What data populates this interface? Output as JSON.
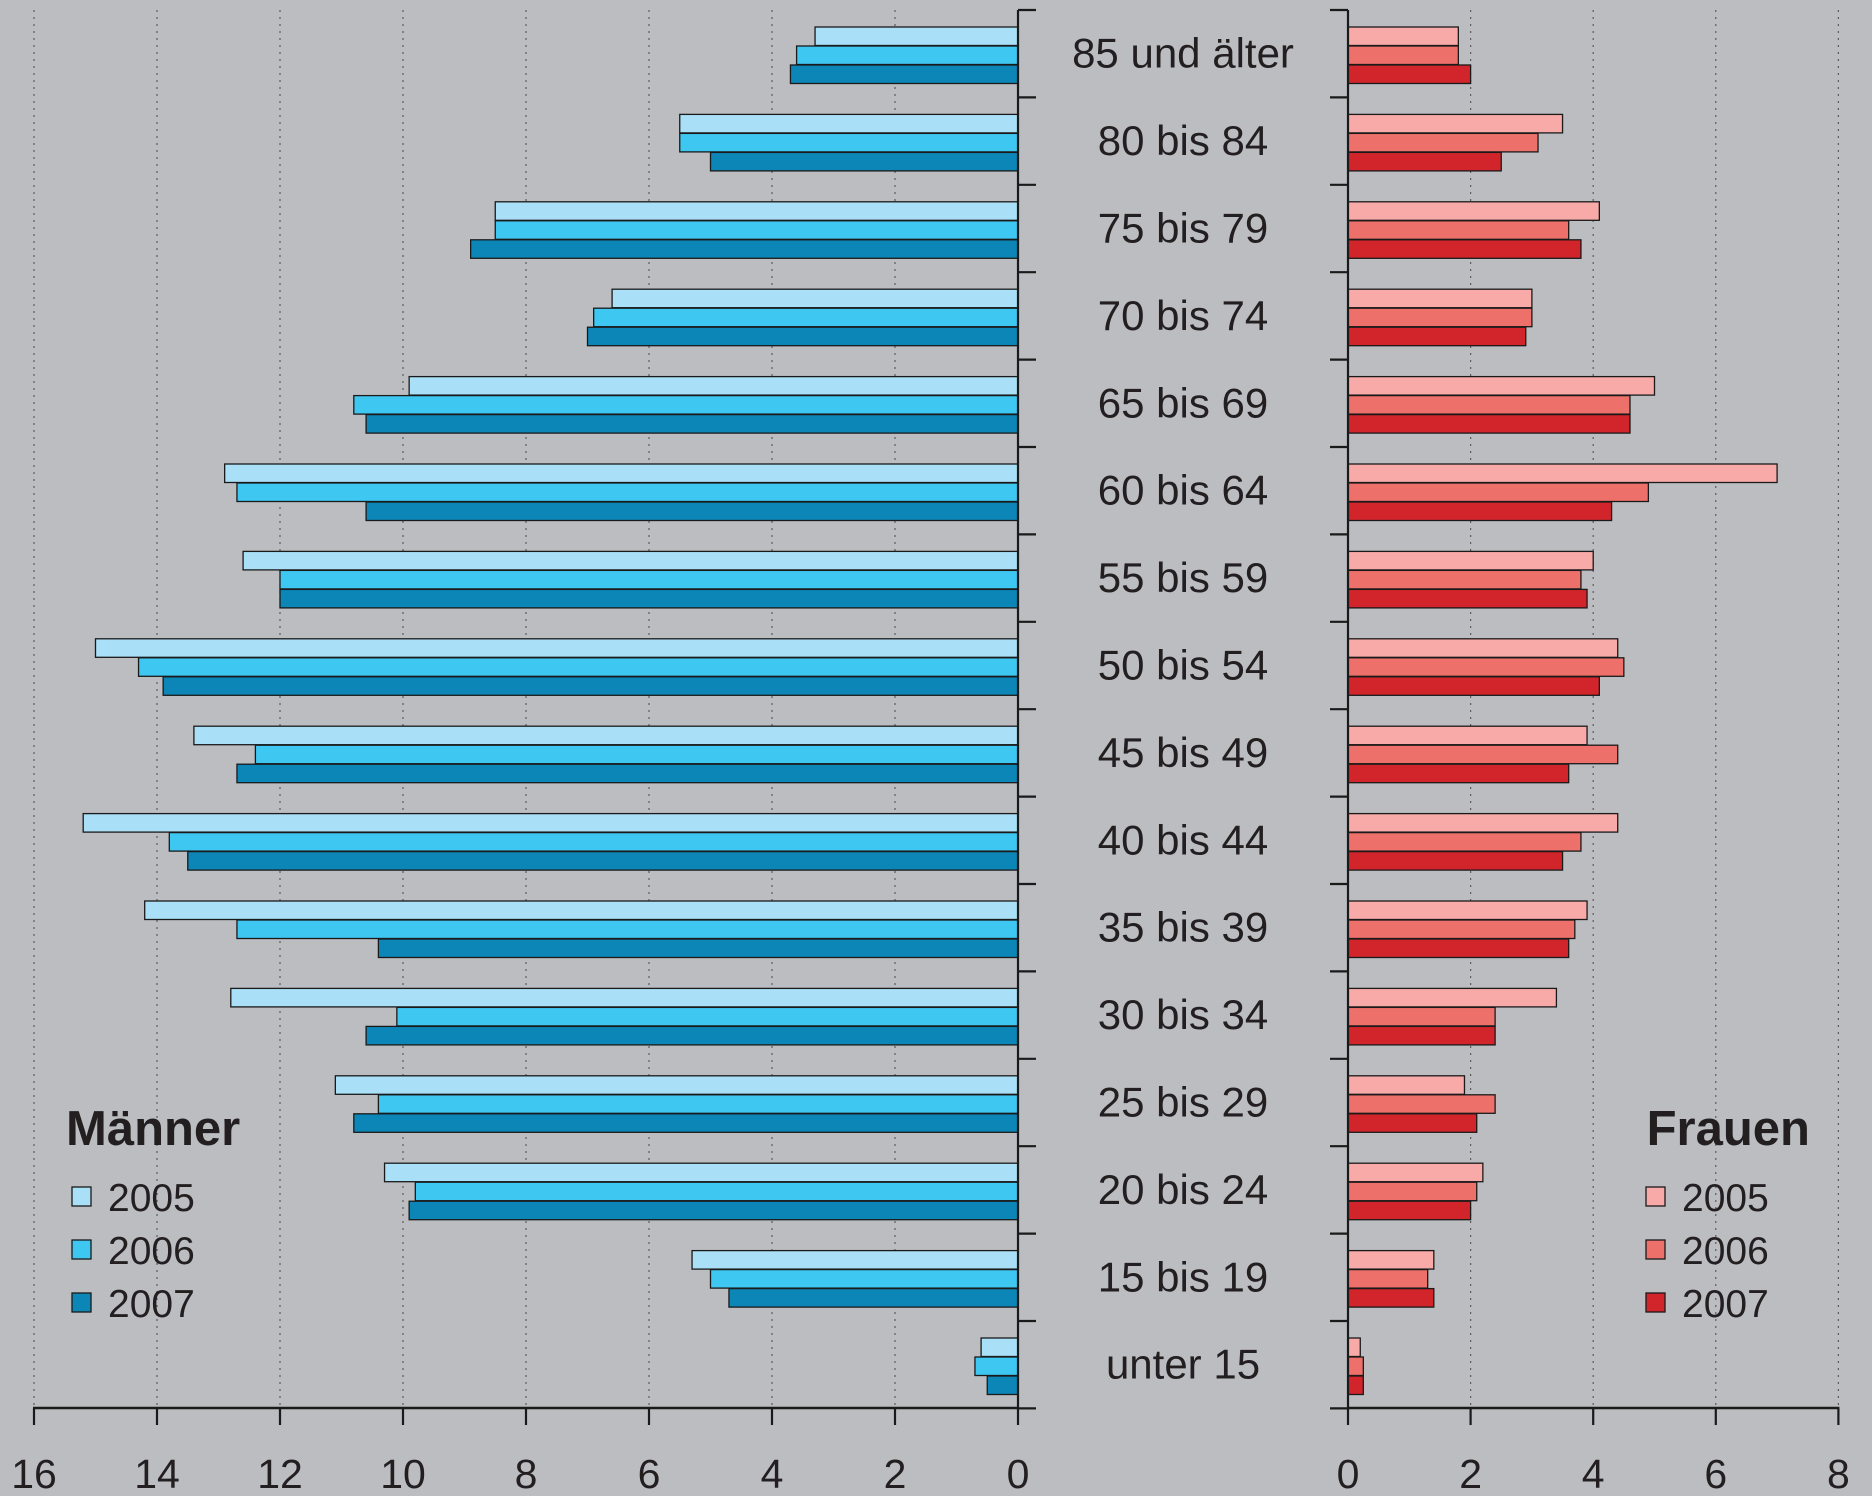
{
  "chart_data": {
    "type": "bar",
    "orientation": "horizontal",
    "layout": "population-pyramid",
    "categories": [
      "85 und älter",
      "80 bis 84",
      "75 bis 79",
      "70 bis 74",
      "65 bis 69",
      "60 bis 64",
      "55 bis 59",
      "50 bis 54",
      "45 bis 49",
      "40 bis 44",
      "35 bis 39",
      "30 bis 34",
      "25 bis 29",
      "20 bis 24",
      "15 bis 19",
      "unter 15"
    ],
    "panels": [
      {
        "key": "maenner",
        "title": "Männer",
        "side": "left",
        "xlim": [
          0,
          16
        ],
        "xticks": [
          0,
          2,
          4,
          6,
          8,
          10,
          12,
          14,
          16
        ],
        "series": [
          {
            "name": "2005",
            "color": "#a9e0f7",
            "values": [
              3.3,
              5.5,
              8.5,
              6.6,
              9.9,
              12.9,
              12.6,
              15.0,
              13.4,
              15.2,
              14.2,
              12.8,
              11.1,
              10.3,
              5.3,
              0.6
            ]
          },
          {
            "name": "2006",
            "color": "#3ec7f1",
            "values": [
              3.6,
              5.5,
              8.5,
              6.9,
              10.8,
              12.7,
              12.0,
              14.3,
              12.4,
              13.8,
              12.7,
              10.1,
              10.4,
              9.8,
              5.0,
              0.7
            ]
          },
          {
            "name": "2007",
            "color": "#0c86b6",
            "values": [
              3.7,
              5.0,
              8.9,
              7.0,
              10.6,
              10.6,
              12.0,
              13.9,
              12.7,
              13.5,
              10.4,
              10.6,
              10.8,
              9.9,
              4.7,
              0.5
            ]
          }
        ]
      },
      {
        "key": "frauen",
        "title": "Frauen",
        "side": "right",
        "xlim": [
          0,
          8
        ],
        "xticks": [
          0,
          2,
          4,
          6,
          8
        ],
        "series": [
          {
            "name": "2005",
            "color": "#f7aaa8",
            "values": [
              1.8,
              3.5,
              4.1,
              3.0,
              5.0,
              7.0,
              4.0,
              4.4,
              3.9,
              4.4,
              3.9,
              3.4,
              1.9,
              2.2,
              1.4,
              0.2
            ]
          },
          {
            "name": "2006",
            "color": "#ee706b",
            "values": [
              1.8,
              3.1,
              3.6,
              3.0,
              4.6,
              4.9,
              3.8,
              4.5,
              4.4,
              3.8,
              3.7,
              2.4,
              2.4,
              2.1,
              1.3,
              0.25
            ]
          },
          {
            "name": "2007",
            "color": "#d2252b",
            "values": [
              2.0,
              2.5,
              3.8,
              2.9,
              4.6,
              4.3,
              3.9,
              4.1,
              3.6,
              3.5,
              3.6,
              2.4,
              2.1,
              2.0,
              1.4,
              0.25
            ]
          }
        ]
      }
    ],
    "grid": true,
    "legend_position": "bottom-left and bottom-right"
  }
}
